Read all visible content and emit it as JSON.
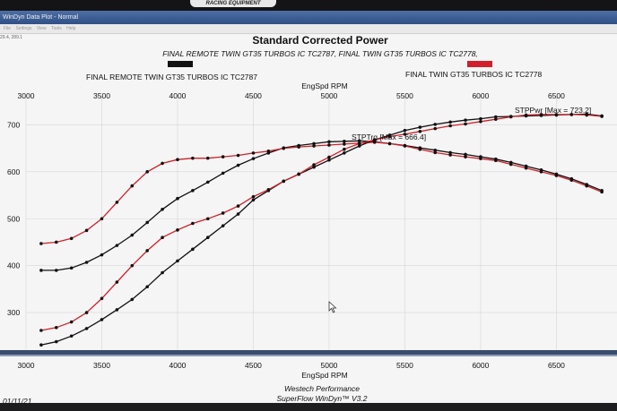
{
  "window": {
    "title": "WinDyn Data Plot - Normal",
    "brand": "RACING EQUIPMENT",
    "coords": "29.4, 289.1"
  },
  "menu": [
    "File",
    "Settings",
    "View",
    "Tools",
    "Help"
  ],
  "chart_data": {
    "type": "line",
    "title": "Standard Corrected Power",
    "subtitle": "FINAL REMOTE TWIN GT35 TURBOS IC TC2787, FINAL TWIN GT35 TURBOS IC TC2778,",
    "xlabel": "EngSpd RPM",
    "xlim": [
      3000,
      6900
    ],
    "ylim": [
      220,
      760
    ],
    "x_ticks": [
      "3000",
      "3500",
      "4000",
      "4500",
      "5000",
      "5500",
      "6000",
      "6500"
    ],
    "y_ticks": [
      "300",
      "400",
      "500",
      "600",
      "700"
    ],
    "grid": true,
    "legend": [
      {
        "name": "FINAL REMOTE TWIN GT35 TURBOS IC TC2787",
        "color": "#111111"
      },
      {
        "name": "FINAL TWIN GT35 TURBOS IC TC2778",
        "color": "#d11f2a"
      }
    ],
    "annotations": {
      "power": "STPPwr [Max = 723.2]",
      "torque": "STPTrq [Max = 666.4]"
    },
    "footer": {
      "date": "01/11/21",
      "line1": "Westech Performance",
      "line2": "SuperFlow WinDyn™ V3.2"
    },
    "series": [
      {
        "name": "FINAL REMOTE TWIN GT35 TURBOS IC TC2787",
        "color": "#111111",
        "kind": "STPTrq",
        "x": [
          3100,
          3200,
          3300,
          3400,
          3500,
          3600,
          3700,
          3800,
          3900,
          4000,
          4100,
          4200,
          4300,
          4400,
          4500,
          4600,
          4700,
          4800,
          4900,
          5000,
          5100,
          5200,
          5300,
          5400,
          5500,
          5600,
          5700,
          5800,
          5900,
          6000,
          6100,
          6200,
          6300,
          6400,
          6500,
          6600,
          6700,
          6800
        ],
        "values": [
          390,
          390,
          395,
          407,
          423,
          443,
          465,
          492,
          520,
          543,
          560,
          578,
          597,
          614,
          628,
          640,
          651,
          656,
          660,
          664,
          665,
          666,
          664,
          660,
          656,
          651,
          646,
          641,
          637,
          632,
          627,
          620,
          612,
          604,
          595,
          585,
          573,
          560
        ]
      },
      {
        "name": "FINAL TWIN GT35 TURBOS IC TC2778",
        "color": "#d11f2a",
        "kind": "STPTrq",
        "x": [
          3100,
          3200,
          3300,
          3400,
          3500,
          3600,
          3700,
          3800,
          3900,
          4000,
          4100,
          4200,
          4300,
          4400,
          4500,
          4600,
          4700,
          4800,
          4900,
          5000,
          5100,
          5200,
          5300,
          5400,
          5500,
          5600,
          5700,
          5800,
          5900,
          6000,
          6100,
          6200,
          6300,
          6400,
          6500,
          6600,
          6700,
          6800
        ],
        "values": [
          447,
          450,
          458,
          475,
          500,
          535,
          570,
          600,
          618,
          626,
          629,
          629,
          632,
          635,
          640,
          644,
          650,
          653,
          655,
          657,
          659,
          661,
          663,
          660,
          655,
          648,
          641,
          636,
          632,
          628,
          624,
          616,
          608,
          600,
          592,
          582,
          570,
          557
        ]
      },
      {
        "name": "FINAL REMOTE TWIN GT35 TURBOS IC TC2787",
        "color": "#111111",
        "kind": "STPPwr",
        "x": [
          3100,
          3200,
          3300,
          3400,
          3500,
          3600,
          3700,
          3800,
          3900,
          4000,
          4100,
          4200,
          4300,
          4400,
          4500,
          4600,
          4700,
          4800,
          4900,
          5000,
          5100,
          5200,
          5300,
          5400,
          5500,
          5600,
          5700,
          5800,
          5900,
          6000,
          6100,
          6200,
          6300,
          6400,
          6500,
          6600,
          6700,
          6800
        ],
        "values": [
          231,
          238,
          250,
          266,
          285,
          306,
          328,
          355,
          385,
          410,
          435,
          460,
          485,
          510,
          540,
          560,
          580,
          595,
          610,
          625,
          640,
          655,
          668,
          678,
          688,
          695,
          701,
          706,
          710,
          713,
          717,
          718,
          719,
          720,
          721,
          722,
          723,
          719
        ]
      },
      {
        "name": "FINAL TWIN GT35 TURBOS IC TC2778",
        "color": "#d11f2a",
        "kind": "STPPwr",
        "x": [
          3100,
          3200,
          3300,
          3400,
          3500,
          3600,
          3700,
          3800,
          3900,
          4000,
          4100,
          4200,
          4300,
          4400,
          4500,
          4600,
          4700,
          4800,
          4900,
          5000,
          5100,
          5200,
          5300,
          5400,
          5500,
          5600,
          5700,
          5800,
          5900,
          6000,
          6100,
          6200,
          6300,
          6400,
          6500,
          6600,
          6700,
          6800
        ],
        "values": [
          262,
          268,
          280,
          300,
          330,
          365,
          400,
          432,
          460,
          476,
          490,
          500,
          512,
          527,
          547,
          562,
          580,
          595,
          615,
          631,
          648,
          660,
          668,
          675,
          680,
          686,
          692,
          698,
          702,
          707,
          712,
          717,
          721,
          722,
          722,
          722,
          721,
          718
        ]
      }
    ]
  }
}
